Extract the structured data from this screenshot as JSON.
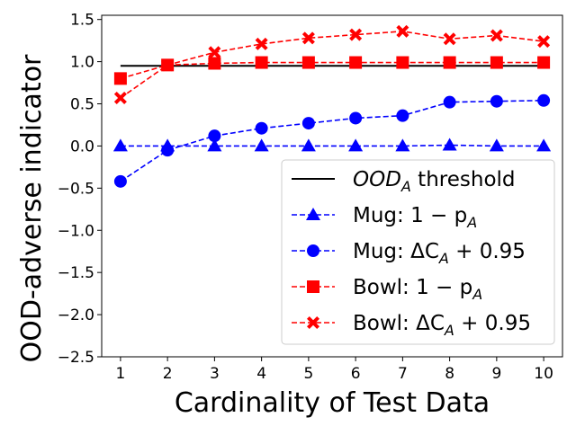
{
  "chart_data": {
    "type": "line",
    "xlabel": "Cardinality of Test Data",
    "ylabel": "OOD-adverse indicator",
    "xlim": [
      0.6,
      10.4
    ],
    "ylim": [
      -2.5,
      1.55
    ],
    "x": [
      1,
      2,
      3,
      4,
      5,
      6,
      7,
      8,
      9,
      10
    ],
    "x_tick_labels": [
      "1",
      "2",
      "3",
      "4",
      "5",
      "6",
      "7",
      "8",
      "9",
      "10"
    ],
    "y_ticks": [
      -2.5,
      -2.0,
      -1.5,
      -1.0,
      -0.5,
      0.0,
      0.5,
      1.0,
      1.5
    ],
    "y_tick_labels": [
      "−2.5",
      "−2.0",
      "−1.5",
      "−1.0",
      "−0.5",
      "0.0",
      "0.5",
      "1.0",
      "1.5"
    ],
    "grid": false,
    "legend_position": "lower-right",
    "series": [
      {
        "legend_main": "OOD",
        "legend_sub": "A",
        "legend_tail": " threshold",
        "color": "#000000",
        "line": "solid",
        "marker": "none",
        "values": [
          0.95,
          0.95,
          0.95,
          0.95,
          0.95,
          0.95,
          0.95,
          0.95,
          0.95,
          0.95
        ]
      },
      {
        "legend_main": "Mug: 1 − p",
        "legend_sub": "A",
        "legend_tail": "",
        "color": "#0000ff",
        "line": "dashed",
        "marker": "triangle",
        "values": [
          0.0,
          0.0,
          0.0,
          0.0,
          0.0,
          0.0,
          0.0,
          0.01,
          0.0,
          0.0
        ]
      },
      {
        "legend_main": "Mug: ΔC",
        "legend_sub": "A",
        "legend_tail": " + 0.95",
        "color": "#0000ff",
        "line": "dashed",
        "marker": "circle",
        "values": [
          -0.42,
          -0.05,
          0.12,
          0.21,
          0.27,
          0.33,
          0.36,
          0.52,
          0.53,
          0.54
        ]
      },
      {
        "legend_main": "Bowl: 1 − p",
        "legend_sub": "A",
        "legend_tail": "",
        "color": "#ff0000",
        "line": "dashed",
        "marker": "square",
        "values": [
          0.8,
          0.96,
          0.98,
          0.99,
          0.99,
          0.99,
          0.99,
          0.99,
          0.99,
          0.99
        ]
      },
      {
        "legend_main": "Bowl: ΔC",
        "legend_sub": "A",
        "legend_tail": " + 0.95",
        "color": "#ff0000",
        "line": "dashed",
        "marker": "x",
        "values": [
          0.57,
          0.96,
          1.11,
          1.21,
          1.28,
          1.32,
          1.36,
          1.27,
          1.31,
          1.24
        ]
      }
    ]
  }
}
